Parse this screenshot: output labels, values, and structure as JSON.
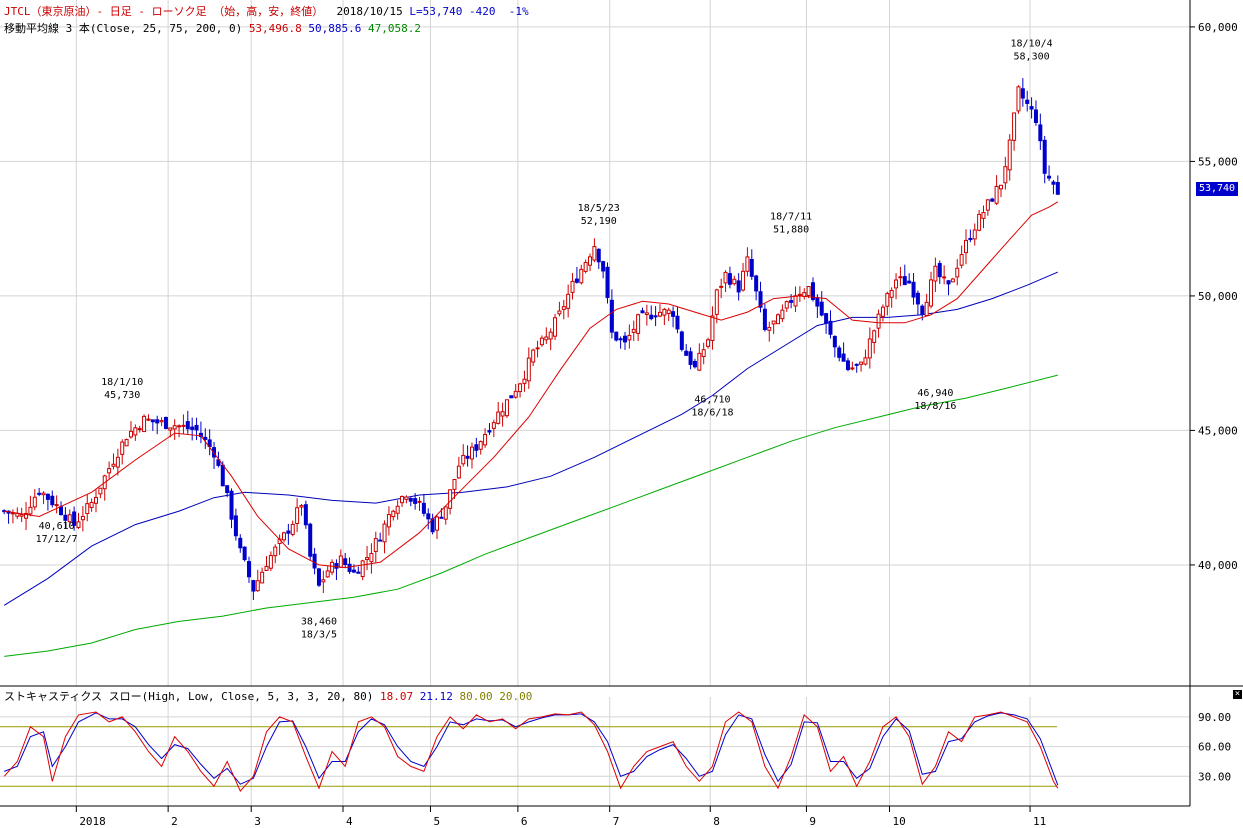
{
  "header": {
    "symbol": "JTCL（東京原油）- 日足 - ローソク足 （始，高，安，終値）",
    "date": "2018/10/15",
    "last": "L=53,740",
    "change": "-420",
    "change_pct": "-1%",
    "ma_label": "移動平均線 3 本(Close, 25, 75, 200, 0)",
    "ma25": "53,496.8",
    "ma75": "50,885.6",
    "ma200": "47,058.2"
  },
  "current_price_label": "53,740",
  "stoch": {
    "label": "ストキャスティクス スロー(High, Low, Close, 5, 3, 3, 20, 80)",
    "k": "18.07",
    "d": "21.12",
    "upper": "80.00",
    "lower": "20.00"
  },
  "colors": {
    "bull": "#cc0000",
    "bear": "#0000cc",
    "ma25": "#dd0000",
    "ma75": "#0000bb",
    "ma200": "#00aa00",
    "grid": "#d4d4d4",
    "stoch_k": "#dd0000",
    "stoch_d": "#0000cc",
    "stoch_level": "#999900"
  },
  "chart_data": [
    {
      "type": "candlestick",
      "title": "",
      "y_range": [
        35500,
        61000
      ],
      "y_ticks": [
        {
          "value": 40000,
          "label": "40,000"
        },
        {
          "value": 45000,
          "label": "45,000"
        },
        {
          "value": 50000,
          "label": "50,000"
        },
        {
          "value": 55000,
          "label": "55,000"
        },
        {
          "value": 60000,
          "label": "60,000"
        }
      ],
      "x_ticks": [
        "2018",
        "2",
        "3",
        "4",
        "5",
        "6",
        "7",
        "8",
        "9",
        "10",
        "11"
      ],
      "annotations": [
        {
          "price": "40,610",
          "date": "17/12/7",
          "side": "below"
        },
        {
          "price": "45,730",
          "date": "18/1/10",
          "side": "above"
        },
        {
          "price": "38,460",
          "date": "18/3/5",
          "side": "below"
        },
        {
          "price": "52,190",
          "date": "18/5/23",
          "side": "above"
        },
        {
          "price": "46,710",
          "date": "18/6/18",
          "side": "below"
        },
        {
          "price": "51,880",
          "date": "18/7/11",
          "side": "above"
        },
        {
          "price": "46,940",
          "date": "18/8/16",
          "side": "below"
        },
        {
          "price": "58,300",
          "date": "18/10/4",
          "side": "above"
        }
      ],
      "close_path": [
        [
          0,
          42000
        ],
        [
          4,
          41800
        ],
        [
          8,
          42800
        ],
        [
          12,
          42200
        ],
        [
          16,
          41500
        ],
        [
          20,
          42300
        ],
        [
          24,
          43600
        ],
        [
          28,
          44800
        ],
        [
          32,
          45400
        ],
        [
          35,
          45300
        ],
        [
          39,
          45200
        ],
        [
          44,
          45000
        ],
        [
          48,
          44200
        ],
        [
          51,
          42500
        ],
        [
          54,
          40500
        ],
        [
          57,
          39100
        ],
        [
          60,
          40100
        ],
        [
          63,
          40800
        ],
        [
          66,
          41600
        ],
        [
          68,
          42300
        ],
        [
          70,
          40300
        ],
        [
          72,
          39200
        ],
        [
          74,
          39800
        ],
        [
          77,
          40200
        ],
        [
          80,
          39700
        ],
        [
          83,
          40300
        ],
        [
          86,
          41100
        ],
        [
          89,
          42200
        ],
        [
          92,
          42700
        ],
        [
          95,
          42200
        ],
        [
          98,
          41400
        ],
        [
          101,
          42200
        ],
        [
          104,
          43700
        ],
        [
          108,
          44400
        ],
        [
          112,
          45400
        ],
        [
          116,
          46300
        ],
        [
          119,
          47100
        ],
        [
          121,
          47900
        ],
        [
          124,
          48400
        ],
        [
          127,
          49300
        ],
        [
          130,
          50400
        ],
        [
          133,
          51300
        ],
        [
          135,
          51900
        ],
        [
          137,
          51000
        ],
        [
          139,
          48600
        ],
        [
          142,
          48200
        ],
        [
          145,
          49100
        ],
        [
          149,
          49400
        ],
        [
          153,
          49400
        ],
        [
          155,
          48100
        ],
        [
          158,
          47300
        ],
        [
          161,
          48400
        ],
        [
          163,
          50100
        ],
        [
          165,
          50800
        ],
        [
          168,
          50300
        ],
        [
          170,
          51300
        ],
        [
          172,
          50100
        ],
        [
          174,
          48700
        ],
        [
          177,
          49100
        ],
        [
          181,
          50100
        ],
        [
          184,
          50300
        ],
        [
          187,
          49300
        ],
        [
          190,
          48100
        ],
        [
          193,
          47300
        ],
        [
          196,
          47400
        ],
        [
          198,
          48300
        ],
        [
          201,
          49600
        ],
        [
          204,
          50600
        ],
        [
          207,
          50500
        ],
        [
          210,
          49500
        ],
        [
          213,
          50900
        ],
        [
          216,
          50300
        ],
        [
          219,
          51600
        ],
        [
          222,
          52600
        ],
        [
          225,
          53400
        ],
        [
          228,
          54200
        ],
        [
          230,
          55600
        ],
        [
          232,
          57600
        ],
        [
          234,
          57100
        ],
        [
          236,
          56600
        ],
        [
          238,
          54600
        ],
        [
          240,
          54160
        ],
        [
          241,
          53740
        ]
      ],
      "ma25": [
        [
          0,
          42000
        ],
        [
          8,
          41800
        ],
        [
          20,
          42700
        ],
        [
          30,
          43900
        ],
        [
          39,
          44900
        ],
        [
          45,
          44800
        ],
        [
          52,
          43300
        ],
        [
          58,
          41800
        ],
        [
          65,
          40600
        ],
        [
          72,
          40000
        ],
        [
          78,
          39900
        ],
        [
          86,
          40100
        ],
        [
          95,
          41200
        ],
        [
          104,
          42700
        ],
        [
          112,
          44000
        ],
        [
          120,
          45500
        ],
        [
          127,
          47200
        ],
        [
          134,
          48800
        ],
        [
          140,
          49500
        ],
        [
          146,
          49800
        ],
        [
          152,
          49700
        ],
        [
          158,
          49400
        ],
        [
          164,
          49100
        ],
        [
          170,
          49400
        ],
        [
          176,
          49900
        ],
        [
          182,
          50000
        ],
        [
          188,
          49900
        ],
        [
          194,
          49100
        ],
        [
          200,
          49000
        ],
        [
          206,
          49000
        ],
        [
          212,
          49300
        ],
        [
          218,
          49900
        ],
        [
          224,
          51000
        ],
        [
          230,
          52100
        ],
        [
          235,
          53000
        ],
        [
          239,
          53300
        ],
        [
          241,
          53497
        ]
      ],
      "ma75": [
        [
          0,
          38500
        ],
        [
          10,
          39500
        ],
        [
          20,
          40700
        ],
        [
          30,
          41500
        ],
        [
          40,
          42000
        ],
        [
          48,
          42500
        ],
        [
          55,
          42700
        ],
        [
          65,
          42600
        ],
        [
          75,
          42400
        ],
        [
          85,
          42300
        ],
        [
          95,
          42600
        ],
        [
          105,
          42700
        ],
        [
          115,
          42900
        ],
        [
          125,
          43300
        ],
        [
          135,
          44000
        ],
        [
          145,
          44800
        ],
        [
          155,
          45600
        ],
        [
          162,
          46300
        ],
        [
          170,
          47300
        ],
        [
          178,
          48100
        ],
        [
          186,
          48900
        ],
        [
          194,
          49200
        ],
        [
          202,
          49200
        ],
        [
          210,
          49300
        ],
        [
          218,
          49500
        ],
        [
          226,
          49900
        ],
        [
          234,
          50400
        ],
        [
          241,
          50886
        ]
      ],
      "ma200": [
        [
          0,
          36600
        ],
        [
          10,
          36800
        ],
        [
          20,
          37100
        ],
        [
          30,
          37600
        ],
        [
          40,
          37900
        ],
        [
          50,
          38100
        ],
        [
          60,
          38400
        ],
        [
          70,
          38600
        ],
        [
          80,
          38800
        ],
        [
          90,
          39100
        ],
        [
          100,
          39700
        ],
        [
          110,
          40400
        ],
        [
          120,
          41000
        ],
        [
          130,
          41600
        ],
        [
          140,
          42200
        ],
        [
          150,
          42800
        ],
        [
          160,
          43400
        ],
        [
          170,
          44000
        ],
        [
          180,
          44600
        ],
        [
          190,
          45100
        ],
        [
          200,
          45500
        ],
        [
          210,
          45900
        ],
        [
          220,
          46200
        ],
        [
          230,
          46600
        ],
        [
          241,
          47058
        ]
      ]
    },
    {
      "type": "line",
      "title": "",
      "y_range": [
        0,
        100
      ],
      "y_ticks": [
        {
          "value": 30,
          "label": "30.00"
        },
        {
          "value": 60,
          "label": "60.00"
        },
        {
          "value": 90,
          "label": "90.00"
        }
      ],
      "levels": [
        20,
        80
      ],
      "k_path": [
        [
          0,
          30
        ],
        [
          3,
          45
        ],
        [
          6,
          80
        ],
        [
          9,
          70
        ],
        [
          11,
          25
        ],
        [
          14,
          70
        ],
        [
          17,
          92
        ],
        [
          21,
          95
        ],
        [
          24,
          85
        ],
        [
          27,
          90
        ],
        [
          30,
          75
        ],
        [
          33,
          55
        ],
        [
          36,
          40
        ],
        [
          39,
          70
        ],
        [
          42,
          55
        ],
        [
          45,
          35
        ],
        [
          48,
          20
        ],
        [
          51,
          45
        ],
        [
          54,
          15
        ],
        [
          57,
          30
        ],
        [
          60,
          75
        ],
        [
          63,
          90
        ],
        [
          66,
          85
        ],
        [
          69,
          50
        ],
        [
          72,
          18
        ],
        [
          75,
          55
        ],
        [
          78,
          40
        ],
        [
          81,
          85
        ],
        [
          84,
          90
        ],
        [
          87,
          80
        ],
        [
          90,
          50
        ],
        [
          93,
          40
        ],
        [
          96,
          35
        ],
        [
          99,
          70
        ],
        [
          102,
          90
        ],
        [
          105,
          78
        ],
        [
          108,
          92
        ],
        [
          111,
          85
        ],
        [
          114,
          88
        ],
        [
          117,
          78
        ],
        [
          120,
          88
        ],
        [
          123,
          90
        ],
        [
          126,
          93
        ],
        [
          129,
          92
        ],
        [
          132,
          95
        ],
        [
          135,
          82
        ],
        [
          138,
          55
        ],
        [
          141,
          18
        ],
        [
          144,
          40
        ],
        [
          147,
          55
        ],
        [
          150,
          60
        ],
        [
          153,
          65
        ],
        [
          156,
          40
        ],
        [
          159,
          25
        ],
        [
          162,
          40
        ],
        [
          165,
          85
        ],
        [
          168,
          95
        ],
        [
          171,
          85
        ],
        [
          174,
          40
        ],
        [
          177,
          18
        ],
        [
          180,
          50
        ],
        [
          183,
          92
        ],
        [
          186,
          80
        ],
        [
          189,
          35
        ],
        [
          192,
          50
        ],
        [
          195,
          20
        ],
        [
          198,
          45
        ],
        [
          201,
          80
        ],
        [
          204,
          90
        ],
        [
          207,
          70
        ],
        [
          210,
          22
        ],
        [
          213,
          40
        ],
        [
          216,
          75
        ],
        [
          219,
          65
        ],
        [
          222,
          90
        ],
        [
          225,
          92
        ],
        [
          228,
          95
        ],
        [
          231,
          90
        ],
        [
          234,
          85
        ],
        [
          237,
          60
        ],
        [
          240,
          25
        ],
        [
          241,
          18
        ]
      ],
      "d_path": [
        [
          0,
          35
        ],
        [
          3,
          40
        ],
        [
          6,
          70
        ],
        [
          9,
          75
        ],
        [
          11,
          40
        ],
        [
          14,
          60
        ],
        [
          17,
          85
        ],
        [
          21,
          94
        ],
        [
          24,
          88
        ],
        [
          27,
          88
        ],
        [
          30,
          80
        ],
        [
          33,
          62
        ],
        [
          36,
          48
        ],
        [
          39,
          62
        ],
        [
          42,
          58
        ],
        [
          45,
          42
        ],
        [
          48,
          28
        ],
        [
          51,
          38
        ],
        [
          54,
          22
        ],
        [
          57,
          28
        ],
        [
          60,
          60
        ],
        [
          63,
          85
        ],
        [
          66,
          86
        ],
        [
          69,
          60
        ],
        [
          72,
          28
        ],
        [
          75,
          45
        ],
        [
          78,
          45
        ],
        [
          81,
          75
        ],
        [
          84,
          88
        ],
        [
          87,
          82
        ],
        [
          90,
          60
        ],
        [
          93,
          45
        ],
        [
          96,
          40
        ],
        [
          99,
          60
        ],
        [
          102,
          85
        ],
        [
          105,
          82
        ],
        [
          108,
          88
        ],
        [
          111,
          86
        ],
        [
          114,
          87
        ],
        [
          117,
          80
        ],
        [
          120,
          85
        ],
        [
          123,
          89
        ],
        [
          126,
          92
        ],
        [
          129,
          92
        ],
        [
          132,
          93
        ],
        [
          135,
          85
        ],
        [
          138,
          65
        ],
        [
          141,
          30
        ],
        [
          144,
          35
        ],
        [
          147,
          50
        ],
        [
          150,
          57
        ],
        [
          153,
          62
        ],
        [
          156,
          48
        ],
        [
          159,
          30
        ],
        [
          162,
          35
        ],
        [
          165,
          72
        ],
        [
          168,
          92
        ],
        [
          171,
          88
        ],
        [
          174,
          52
        ],
        [
          177,
          25
        ],
        [
          180,
          42
        ],
        [
          183,
          85
        ],
        [
          186,
          84
        ],
        [
          189,
          45
        ],
        [
          192,
          45
        ],
        [
          195,
          28
        ],
        [
          198,
          38
        ],
        [
          201,
          70
        ],
        [
          204,
          88
        ],
        [
          207,
          76
        ],
        [
          210,
          32
        ],
        [
          213,
          35
        ],
        [
          216,
          65
        ],
        [
          219,
          68
        ],
        [
          222,
          85
        ],
        [
          225,
          91
        ],
        [
          228,
          94
        ],
        [
          231,
          92
        ],
        [
          234,
          88
        ],
        [
          237,
          68
        ],
        [
          240,
          33
        ],
        [
          241,
          21
        ]
      ]
    }
  ]
}
